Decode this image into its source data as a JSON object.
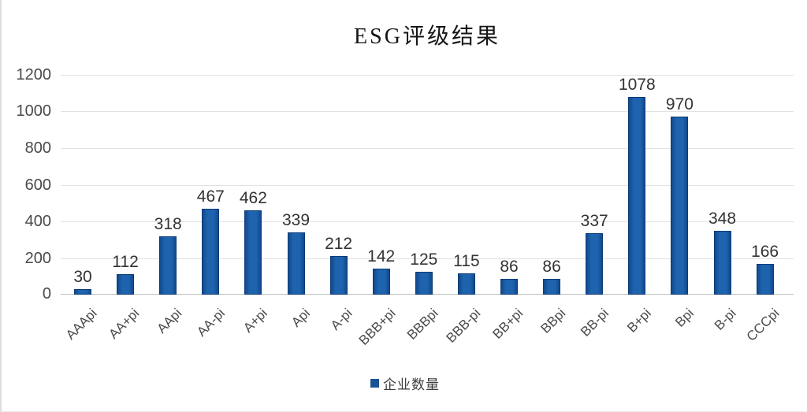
{
  "title": "ESG评级结果",
  "legend": {
    "label": "企业数量",
    "marker_color": "#1a5496"
  },
  "chart_data": {
    "type": "bar",
    "title": "ESG评级结果",
    "categories": [
      "AAApi",
      "AA+pi",
      "AApi",
      "AA-pi",
      "A+pi",
      "Api",
      "A-pi",
      "BBB+pi",
      "BBBpi",
      "BBB-pi",
      "BB+pi",
      "BBpi",
      "BB-pi",
      "B+pi",
      "Bpi",
      "B-pi",
      "CCCpi"
    ],
    "values": [
      30,
      112,
      318,
      467,
      462,
      339,
      212,
      142,
      125,
      115,
      86,
      86,
      337,
      1078,
      970,
      348,
      166
    ],
    "series": [
      {
        "name": "企业数量",
        "values": [
          30,
          112,
          318,
          467,
          462,
          339,
          212,
          142,
          125,
          115,
          86,
          86,
          337,
          1078,
          970,
          348,
          166
        ]
      }
    ],
    "xlabel": "",
    "ylabel": "",
    "ylim": [
      0,
      1200
    ],
    "yticks": [
      0,
      200,
      400,
      600,
      800,
      1000,
      1200
    ],
    "grid": true,
    "value_labels": true,
    "legend_position": "bottom",
    "bar_color": "#1e63ae",
    "bar_border_color": "#0d3c74",
    "gridline_color": "#e2e2e2",
    "axis_line_color": "#bdbdbd"
  }
}
